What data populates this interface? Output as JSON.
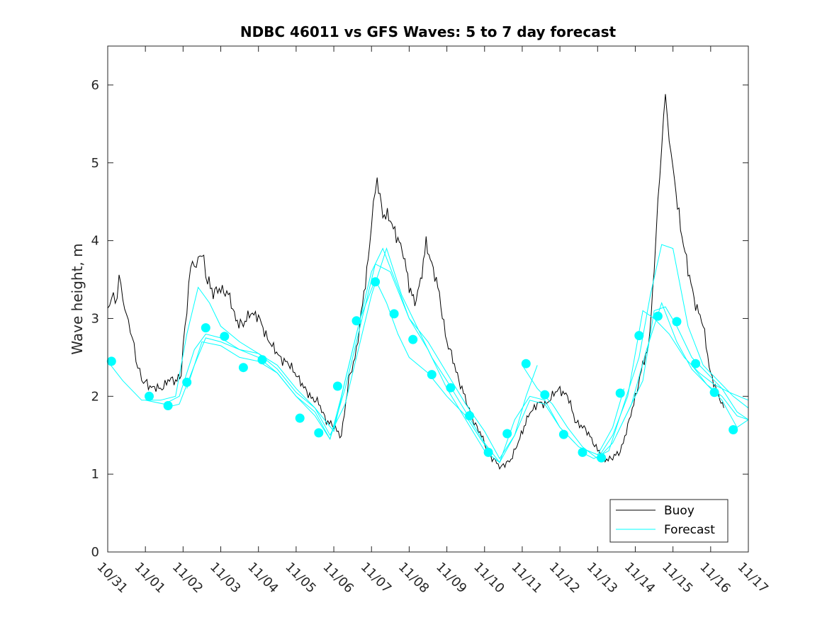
{
  "chart_data": {
    "type": "line",
    "title": "NDBC 46011 vs GFS Waves: 5 to 7 day forecast",
    "xlabel": "",
    "ylabel": "Wave height, m",
    "x_tick_labels": [
      "10/31",
      "11/01",
      "11/02",
      "11/03",
      "11/04",
      "11/05",
      "11/06",
      "11/07",
      "11/08",
      "11/09",
      "11/10",
      "11/11",
      "11/12",
      "11/13",
      "11/14",
      "11/15",
      "11/16",
      "11/17"
    ],
    "xlim_days": [
      0,
      17
    ],
    "ylim": [
      0,
      6.5
    ],
    "y_ticks": [
      0,
      1,
      2,
      3,
      4,
      5,
      6
    ],
    "legend": {
      "position": "bottom-right",
      "entries": [
        "Buoy",
        "Forecast"
      ]
    },
    "colors": {
      "buoy": "#000000",
      "forecast": "#00ffff",
      "axis": "#262626"
    },
    "series": [
      {
        "name": "Buoy",
        "x_day": [
          0.0,
          0.1,
          0.2,
          0.3,
          0.4,
          0.5,
          0.6,
          0.7,
          0.8,
          0.9,
          1.0,
          1.2,
          1.4,
          1.6,
          1.8,
          1.95,
          2.05,
          2.15,
          2.25,
          2.35,
          2.45,
          2.55,
          2.65,
          2.8,
          3.0,
          3.2,
          3.4,
          3.6,
          3.8,
          4.0,
          4.2,
          4.4,
          4.6,
          4.8,
          5.0,
          5.2,
          5.4,
          5.6,
          5.8,
          6.0,
          6.2,
          6.4,
          6.6,
          6.8,
          6.95,
          7.05,
          7.15,
          7.3,
          7.5,
          7.7,
          7.85,
          8.0,
          8.15,
          8.3,
          8.45,
          8.6,
          8.8,
          9.0,
          9.2,
          9.4,
          9.6,
          9.8,
          10.0,
          10.2,
          10.4,
          10.5,
          10.7,
          10.9,
          11.05,
          11.2,
          11.4,
          11.6,
          11.8,
          12.0,
          12.2,
          12.4,
          12.6,
          12.8,
          13.0,
          13.2,
          13.4,
          13.6,
          13.8,
          14.0,
          14.2,
          14.35,
          14.5,
          14.6,
          14.7,
          14.8,
          14.9,
          15.0,
          15.2,
          15.4,
          15.6,
          15.8,
          16.0,
          16.2,
          16.35
        ],
        "y": [
          3.1,
          3.3,
          3.2,
          3.5,
          3.3,
          3.0,
          2.9,
          2.6,
          2.4,
          2.2,
          2.2,
          2.1,
          2.1,
          2.2,
          2.2,
          2.3,
          2.9,
          3.4,
          3.8,
          3.6,
          3.9,
          3.7,
          3.5,
          3.3,
          3.4,
          3.3,
          3.0,
          2.9,
          3.1,
          3.0,
          2.8,
          2.6,
          2.5,
          2.4,
          2.3,
          2.1,
          2.0,
          1.9,
          1.7,
          1.6,
          1.5,
          2.2,
          2.6,
          3.3,
          3.9,
          4.5,
          4.8,
          4.3,
          4.3,
          4.0,
          3.8,
          3.4,
          3.2,
          3.5,
          4.0,
          3.7,
          3.3,
          2.7,
          2.4,
          2.1,
          1.8,
          1.6,
          1.4,
          1.2,
          1.1,
          1.1,
          1.2,
          1.4,
          1.6,
          1.8,
          1.9,
          1.9,
          2.0,
          2.1,
          2.0,
          1.7,
          1.6,
          1.5,
          1.3,
          1.2,
          1.2,
          1.3,
          1.6,
          2.0,
          2.4,
          2.6,
          3.6,
          4.5,
          5.2,
          5.9,
          5.3,
          4.9,
          4.2,
          3.6,
          3.2,
          2.9,
          2.3,
          2.0,
          1.85
        ]
      },
      {
        "name": "Forecast",
        "segments": [
          {
            "x_day": [
              0.0,
              0.4,
              0.9,
              1.4,
              1.8,
              2.1,
              2.4,
              2.7,
              3.0,
              3.5,
              4.0,
              4.5,
              5.0,
              5.5,
              6.0,
              6.3,
              6.7,
              7.1,
              7.4,
              7.7,
              8.0,
              8.5,
              9.0,
              9.5,
              9.9,
              10.2
            ],
            "y": [
              2.45,
              2.2,
              1.95,
              1.95,
              2.0,
              2.8,
              3.4,
              3.2,
              2.9,
              2.7,
              2.55,
              2.35,
              2.05,
              1.85,
              1.55,
              2.2,
              3.0,
              3.5,
              3.2,
              2.8,
              2.5,
              2.3,
              2.0,
              1.75,
              1.45,
              1.25
            ]
          },
          {
            "x_day": [
              1.0,
              1.5,
              1.9,
              2.3,
              2.6,
              3.0,
              3.5,
              4.0,
              4.5,
              5.0,
              5.5,
              5.9,
              6.2,
              6.6,
              7.0,
              7.3,
              7.7,
              8.0,
              8.5,
              9.0,
              9.5,
              10.0,
              10.4,
              10.8,
              11.1,
              11.4
            ],
            "y": [
              1.95,
              1.9,
              2.0,
              2.6,
              2.8,
              2.75,
              2.6,
              2.5,
              2.3,
              2.0,
              1.75,
              1.45,
              2.0,
              2.8,
              3.6,
              3.9,
              3.4,
              3.0,
              2.7,
              2.3,
              1.9,
              1.55,
              1.2,
              1.5,
              2.0,
              2.4
            ]
          },
          {
            "x_day": [
              1.5,
              1.9,
              2.3,
              2.6,
              3.0,
              3.5,
              4.0,
              4.5,
              5.0,
              5.5,
              5.9,
              6.3,
              6.7,
              7.0,
              7.4,
              7.8,
              8.2,
              8.6,
              9.0,
              9.5,
              10.0,
              10.4,
              10.8,
              11.2,
              11.6,
              12.0,
              12.4
            ],
            "y": [
              1.85,
              1.9,
              2.4,
              2.75,
              2.7,
              2.6,
              2.55,
              2.4,
              2.1,
              1.85,
              1.5,
              1.9,
              2.7,
              3.3,
              3.9,
              3.3,
              2.9,
              2.5,
              2.2,
              1.8,
              1.4,
              1.15,
              1.5,
              1.95,
              1.9,
              1.6,
              1.4
            ]
          },
          {
            "x_day": [
              2.1,
              2.5,
              3.0,
              3.5,
              4.0,
              4.5,
              5.0,
              5.5,
              5.9,
              6.3,
              6.7,
              7.1,
              7.5,
              8.0,
              8.5,
              9.0,
              9.5,
              10.0,
              10.4,
              10.8,
              11.2,
              11.6,
              12.0,
              12.5,
              13.0,
              13.4,
              13.7
            ],
            "y": [
              2.1,
              2.7,
              2.65,
              2.5,
              2.45,
              2.3,
              2.0,
              1.8,
              1.45,
              2.1,
              2.9,
              3.7,
              3.6,
              3.0,
              2.6,
              2.1,
              1.7,
              1.3,
              1.15,
              1.7,
              2.0,
              1.95,
              1.6,
              1.35,
              1.25,
              1.6,
              2.1
            ]
          },
          {
            "x_day": [
              11.0,
              11.4,
              11.8,
              12.2,
              12.6,
              13.0,
              13.4,
              13.8,
              14.2,
              14.5,
              14.9,
              15.3,
              15.7,
              16.1,
              16.5,
              17.0
            ],
            "y": [
              2.4,
              2.1,
              1.9,
              1.6,
              1.35,
              1.2,
              1.5,
              2.0,
              3.1,
              3.0,
              2.8,
              2.5,
              2.3,
              2.15,
              2.05,
              1.95
            ]
          },
          {
            "x_day": [
              12.5,
              12.9,
              13.3,
              13.7,
              14.1,
              14.4,
              14.7,
              15.0,
              15.4,
              15.8,
              16.2,
              16.6,
              17.0
            ],
            "y": [
              1.3,
              1.2,
              1.3,
              1.9,
              2.5,
              3.3,
              3.95,
              3.9,
              2.9,
              2.4,
              2.2,
              2.0,
              1.85
            ]
          },
          {
            "x_day": [
              13.0,
              13.4,
              13.8,
              14.2,
              14.5,
              14.8,
              15.1,
              15.5,
              15.9,
              16.3,
              16.7,
              17.0
            ],
            "y": [
              1.2,
              1.4,
              1.8,
              2.2,
              3.1,
              3.15,
              2.9,
              2.5,
              2.3,
              2.1,
              1.8,
              1.7
            ]
          },
          {
            "x_day": [
              13.5,
              13.9,
              14.3,
              14.7,
              15.1,
              15.5,
              15.9,
              16.3,
              16.7,
              17.0
            ],
            "y": [
              1.5,
              1.9,
              2.6,
              3.2,
              2.7,
              2.35,
              2.15,
              2.0,
              1.75,
              1.7
            ]
          },
          {
            "x_day": [
              15.5,
              15.9,
              16.3,
              16.7,
              17.0
            ],
            "y": [
              2.4,
              2.15,
              1.95,
              1.6,
              1.7
            ]
          }
        ],
        "markers_x_day": [
          0.1,
          1.1,
          1.6,
          2.1,
          2.6,
          3.1,
          3.6,
          4.1,
          5.1,
          5.6,
          6.1,
          6.6,
          7.1,
          7.6,
          8.1,
          8.6,
          9.1,
          9.6,
          10.1,
          10.6,
          11.1,
          11.6,
          12.1,
          12.6,
          13.1,
          13.6,
          14.1,
          14.6,
          15.1,
          15.6,
          16.1,
          16.6
        ],
        "markers_y": [
          2.45,
          2.0,
          1.88,
          2.18,
          2.88,
          2.77,
          2.37,
          2.47,
          1.72,
          1.53,
          2.13,
          2.97,
          3.47,
          3.06,
          2.73,
          2.28,
          2.11,
          1.75,
          1.28,
          1.52,
          2.42,
          2.02,
          1.51,
          1.28,
          1.21,
          2.04,
          2.78,
          3.03,
          2.96,
          2.42,
          2.05,
          1.57
        ]
      }
    ]
  }
}
